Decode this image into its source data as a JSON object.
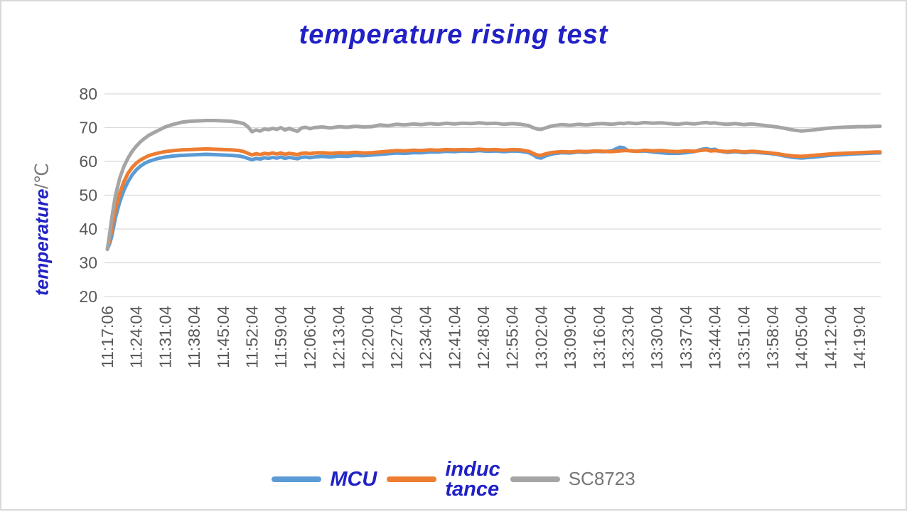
{
  "title": "temperature rising test",
  "y_axis": {
    "title_main": "temperature",
    "title_unit": "/℃"
  },
  "legend": {
    "items": [
      {
        "id": "mcu",
        "label": "MCU",
        "color": "#5B9BD5",
        "label_color": "#2121C6",
        "emphasis": true
      },
      {
        "id": "inductance",
        "label": "induc\ntance",
        "color": "#ED7D31",
        "label_color": "#2121C6",
        "emphasis": true
      },
      {
        "id": "sc8723",
        "label": "SC8723",
        "color": "#A5A5A5",
        "label_color": "#767676",
        "emphasis": false
      }
    ]
  },
  "colors": {
    "gridline": "#D9D9D9",
    "tick_text": "#595959",
    "title_text": "#2121C6"
  },
  "chart_data": {
    "type": "line",
    "title": "temperature rising test",
    "xlabel": "",
    "ylabel_main": "temperature",
    "ylabel_unit": "/℃",
    "ylim": [
      20,
      80
    ],
    "y_ticks": [
      80,
      70,
      60,
      50,
      40,
      30,
      20
    ],
    "grid": "horizontal",
    "legend_position": "bottom",
    "x_tick_interval_minutes": 7,
    "x_tick_labels": [
      "11:17:06",
      "11:24:04",
      "11:31:04",
      "11:38:04",
      "11:45:04",
      "11:52:04",
      "11:59:04",
      "12:06:04",
      "12:13:04",
      "12:20:04",
      "12:27:04",
      "12:34:04",
      "12:41:04",
      "12:48:04",
      "12:55:04",
      "13:02:04",
      "13:09:04",
      "13:16:04",
      "13:23:04",
      "13:30:04",
      "13:37:04",
      "13:44:04",
      "13:51:04",
      "13:58:04",
      "14:05:04",
      "14:12:04",
      "14:19:04"
    ],
    "x_minutes": [
      0,
      0.5,
      1,
      1.5,
      2,
      3,
      4,
      5,
      6,
      7,
      8,
      9,
      10,
      12,
      14,
      16,
      18,
      20,
      22,
      24,
      26,
      28,
      30,
      32,
      33,
      34,
      35,
      36,
      37,
      38,
      39,
      40,
      41,
      42,
      43,
      44,
      45,
      46,
      47,
      48,
      49,
      50,
      52,
      54,
      56,
      58,
      60,
      62,
      64,
      66,
      68,
      70,
      72,
      74,
      76,
      78,
      80,
      82,
      84,
      86,
      88,
      90,
      92,
      94,
      96,
      98,
      100,
      102,
      103,
      104,
      105,
      106,
      107,
      108,
      110,
      112,
      114,
      116,
      118,
      120,
      122,
      124,
      125,
      126,
      128,
      130,
      132,
      134,
      136,
      138,
      140,
      142,
      144,
      145,
      146,
      147,
      148,
      150,
      152,
      154,
      156,
      158,
      160,
      162,
      164,
      166,
      168,
      170,
      172,
      174,
      176,
      178,
      180,
      182,
      184,
      186,
      187
    ],
    "series": [
      {
        "name": "MCU",
        "color": "#5B9BD5",
        "values": [
          34,
          35.5,
          37.5,
          40.5,
          43.5,
          48,
          51.5,
          54,
          56,
          57.5,
          58.6,
          59.4,
          60.0,
          60.8,
          61.3,
          61.6,
          61.8,
          61.9,
          62.0,
          62.1,
          62.0,
          61.9,
          61.8,
          61.6,
          61.3,
          60.9,
          60.5,
          60.9,
          60.7,
          61.1,
          60.9,
          61.2,
          61.0,
          61.3,
          60.9,
          61.2,
          61.0,
          60.8,
          61.2,
          61.3,
          61.1,
          61.3,
          61.5,
          61.3,
          61.6,
          61.5,
          61.8,
          61.7,
          61.9,
          62.1,
          62.3,
          62.5,
          62.4,
          62.6,
          62.6,
          62.8,
          62.8,
          63.0,
          62.9,
          63.1,
          63.0,
          63.2,
          63.0,
          63.1,
          62.9,
          63.1,
          63.0,
          62.6,
          62.0,
          61.2,
          61.0,
          61.6,
          62.0,
          62.3,
          62.6,
          62.5,
          62.8,
          62.7,
          63.0,
          62.9,
          63.1,
          64.2,
          64.0,
          63.2,
          63.0,
          63.1,
          62.8,
          62.6,
          62.4,
          62.4,
          62.6,
          62.9,
          63.6,
          63.8,
          63.4,
          63.6,
          63.1,
          62.7,
          62.9,
          62.6,
          62.8,
          62.6,
          62.4,
          62.1,
          61.6,
          61.2,
          61.0,
          61.2,
          61.4,
          61.7,
          61.9,
          62.0,
          62.2,
          62.3,
          62.4,
          62.5,
          62.5
        ]
      },
      {
        "name": "inductance",
        "color": "#ED7D31",
        "values": [
          34,
          36.5,
          39.5,
          43,
          46,
          50.5,
          54,
          56.5,
          58.2,
          59.5,
          60.4,
          61.1,
          61.7,
          62.4,
          62.9,
          63.2,
          63.4,
          63.5,
          63.6,
          63.7,
          63.6,
          63.5,
          63.4,
          63.2,
          62.9,
          62.4,
          61.9,
          62.3,
          62.0,
          62.4,
          62.2,
          62.5,
          62.2,
          62.5,
          62.1,
          62.4,
          62.2,
          62.0,
          62.4,
          62.5,
          62.3,
          62.5,
          62.6,
          62.4,
          62.6,
          62.5,
          62.7,
          62.5,
          62.6,
          62.8,
          63.0,
          63.2,
          63.1,
          63.3,
          63.2,
          63.4,
          63.3,
          63.5,
          63.4,
          63.5,
          63.4,
          63.6,
          63.4,
          63.5,
          63.3,
          63.5,
          63.4,
          63.0,
          62.4,
          61.9,
          61.8,
          62.2,
          62.5,
          62.7,
          62.9,
          62.8,
          63.0,
          62.9,
          63.1,
          63.0,
          62.9,
          63.1,
          63.2,
          63.2,
          63.0,
          63.3,
          63.1,
          63.2,
          63.0,
          62.9,
          63.1,
          63.0,
          63.3,
          63.4,
          63.1,
          63.2,
          63.1,
          62.9,
          63.1,
          62.8,
          63.0,
          62.8,
          62.6,
          62.3,
          61.9,
          61.6,
          61.5,
          61.7,
          61.9,
          62.1,
          62.3,
          62.4,
          62.5,
          62.6,
          62.7,
          62.8,
          62.8
        ]
      },
      {
        "name": "SC8723",
        "color": "#A5A5A5",
        "values": [
          34,
          38,
          42.5,
          46.5,
          50,
          55,
          58.5,
          61,
          63,
          64.5,
          65.8,
          66.8,
          67.7,
          69.0,
          70.2,
          71.0,
          71.6,
          71.9,
          72.0,
          72.1,
          72.1,
          72.0,
          71.9,
          71.5,
          71.2,
          70.3,
          68.8,
          69.3,
          69.0,
          69.6,
          69.4,
          69.8,
          69.5,
          70.0,
          69.3,
          69.8,
          69.3,
          68.9,
          69.9,
          70.1,
          69.7,
          70.0,
          70.2,
          69.9,
          70.3,
          70.1,
          70.4,
          70.2,
          70.3,
          70.8,
          70.6,
          71.0,
          70.8,
          71.1,
          70.9,
          71.2,
          71.0,
          71.3,
          71.1,
          71.3,
          71.2,
          71.4,
          71.2,
          71.3,
          71.0,
          71.2,
          71.0,
          70.6,
          70.0,
          69.6,
          69.5,
          69.9,
          70.3,
          70.6,
          70.9,
          70.7,
          71.0,
          70.8,
          71.1,
          71.2,
          71.0,
          71.3,
          71.2,
          71.4,
          71.2,
          71.5,
          71.3,
          71.4,
          71.2,
          71.0,
          71.3,
          71.1,
          71.4,
          71.5,
          71.3,
          71.4,
          71.2,
          71.0,
          71.2,
          70.9,
          71.1,
          70.8,
          70.5,
          70.2,
          69.8,
          69.3,
          69.0,
          69.2,
          69.5,
          69.8,
          70.0,
          70.1,
          70.2,
          70.3,
          70.3,
          70.4,
          70.4
        ]
      }
    ]
  }
}
